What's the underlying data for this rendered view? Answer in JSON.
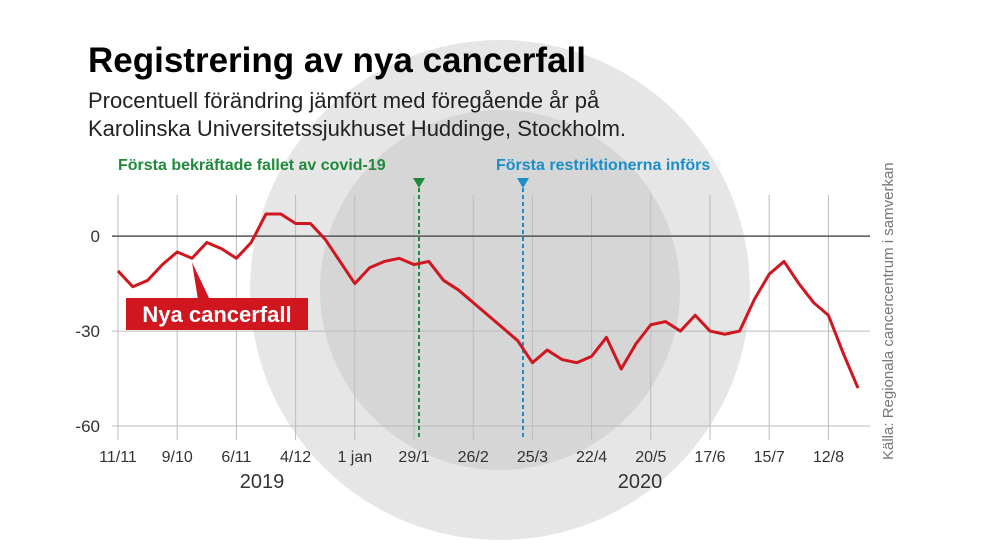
{
  "chart_data": {
    "type": "line",
    "title": "Registrering av nya cancerfall",
    "subtitle": [
      "Procentuell förändring jämfört med föregående år på",
      "Karolinska Universitetssjukhuset Huddinge, Stockholm."
    ],
    "source": "Källa: Regionala cancercentrum i samverkan",
    "annotations": [
      "Första bekräftade fallet av covid-19",
      "Första restriktionerna införs"
    ],
    "years": [
      "2019",
      "2020"
    ],
    "categories": [
      "11/11",
      null,
      null,
      null,
      "9/10",
      null,
      null,
      null,
      "6/11",
      null,
      null,
      null,
      "4/12",
      null,
      null,
      null,
      "1 jan",
      null,
      null,
      null,
      "29/1",
      null,
      null,
      null,
      "26/2",
      null,
      null,
      null,
      "25/3",
      null,
      null,
      null,
      "22/4",
      null,
      null,
      null,
      "20/5",
      null,
      null,
      null,
      "17/6",
      null,
      null,
      null,
      "15/7",
      null,
      null,
      null,
      "12/8",
      null,
      null
    ],
    "series": [
      {
        "name": "Nya cancerfall",
        "color": "#d0161e",
        "values": [
          -11,
          -16,
          -14,
          -9,
          -5,
          -7,
          -2,
          -4,
          -7,
          -2,
          7,
          7,
          4,
          4,
          -1,
          -8,
          -15,
          -10,
          -8,
          -7,
          -9,
          -8,
          -14,
          -17,
          -21,
          -25,
          -29,
          -33,
          -40,
          -36,
          -39,
          -40,
          -38,
          -32,
          -42,
          -34,
          -28,
          -27,
          -30,
          -25,
          -30,
          -31,
          -30,
          -20,
          -12,
          -8,
          -15,
          -21,
          -25,
          -37,
          -48
        ]
      }
    ],
    "ylim": [
      -60,
      13
    ],
    "yticks": [
      0,
      -30,
      -60
    ],
    "grid": true
  }
}
